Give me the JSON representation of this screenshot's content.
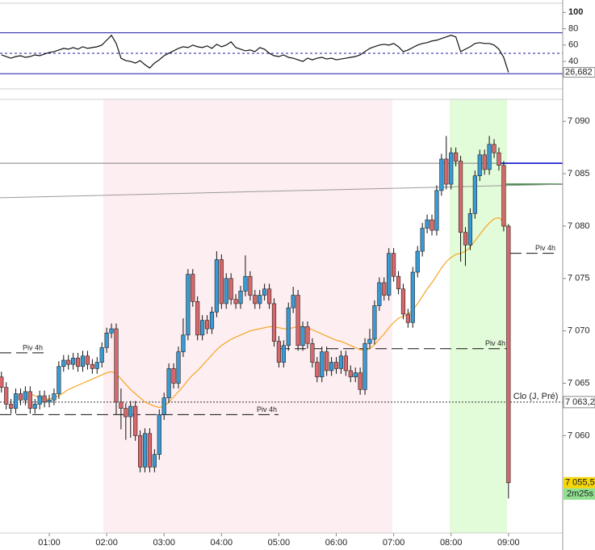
{
  "chart_data": {
    "type": "candlestick",
    "x": [
      10,
      15,
      20,
      25,
      30,
      35,
      40,
      45,
      50,
      55,
      60,
      65,
      70,
      75,
      80,
      85,
      90,
      95,
      100,
      105,
      110,
      115,
      120,
      125,
      130,
      135,
      140,
      145,
      150,
      155,
      160,
      165,
      170,
      175,
      180,
      185,
      190,
      195,
      200,
      205,
      210,
      215,
      220,
      225,
      230,
      235,
      240,
      245,
      250,
      255,
      260,
      265,
      270,
      275,
      280,
      285,
      290,
      295,
      300,
      305,
      310,
      315,
      320,
      325,
      330,
      335,
      340,
      345,
      350,
      355,
      360,
      365,
      370,
      375,
      380,
      385,
      390,
      395,
      400,
      405,
      410,
      415,
      420,
      425,
      430,
      435,
      440,
      445,
      450,
      455,
      460,
      465,
      470,
      475,
      480,
      485,
      490,
      495,
      500,
      505,
      510,
      515,
      520,
      525,
      530,
      535,
      540
    ],
    "xlim": [
      8.5,
      596.7
    ],
    "xticks": [
      {
        "value": 60,
        "label": "01:00"
      },
      {
        "value": 120,
        "label": "02:00"
      },
      {
        "value": 180,
        "label": "03:00"
      },
      {
        "value": 240,
        "label": "04:00"
      },
      {
        "value": 300,
        "label": "05:00"
      },
      {
        "value": 360,
        "label": "06:00"
      },
      {
        "value": 420,
        "label": "07:00"
      },
      {
        "value": 480,
        "label": "08:00"
      },
      {
        "value": 540,
        "label": "09:00"
      }
    ],
    "open": [
      7065.6,
      7064.6,
      7063.0,
      7062.6,
      7064.0,
      7063.4,
      7064.2,
      7062.6,
      7063.0,
      7063.8,
      7063.2,
      7063.4,
      7064.0,
      7066.6,
      7067.2,
      7066.8,
      7067.4,
      7066.6,
      7067.6,
      7066.8,
      7066.4,
      7067.0,
      7068.4,
      7069.8,
      7070.2,
      7063.2,
      7062.6,
      7061.8,
      7062.8,
      7060.0,
      7057.0,
      7060.2,
      7057.0,
      7058.2,
      7062.0,
      7063.6,
      7066.4,
      7065.0,
      7068.0,
      7069.6,
      7075.4,
      7072.8,
      7069.6,
      7071.0,
      7070.2,
      7071.8,
      7076.8,
      7072.6,
      7075.0,
      7073.0,
      7072.6,
      7073.8,
      7075.2,
      7073.4,
      7072.6,
      7073.4,
      7074.0,
      7072.6,
      7069.0,
      7067.0,
      7068.6,
      7072.2,
      7073.4,
      7068.6,
      7070.4,
      7068.8,
      7067.0,
      7065.6,
      7068.0,
      7066.2,
      7067.0,
      7066.4,
      7067.6,
      7066.2,
      7065.6,
      7066.0,
      7064.4,
      7068.8,
      7069.2,
      7072.4,
      7074.6,
      7073.4,
      7077.4,
      7075.2,
      7074.0,
      7071.6,
      7070.8,
      7075.6,
      7077.6,
      7079.8,
      7080.6,
      7079.6,
      7083.4,
      7086.4,
      7084.0,
      7087.0,
      7086.2,
      7079.4,
      7078.2,
      7081.2,
      7084.8,
      7086.8,
      7085.4,
      7087.8,
      7087.0,
      7085.8,
      7080.0
    ],
    "high": [
      7066.1,
      7065.1,
      7063.5,
      7064.5,
      7064.5,
      7064.7,
      7064.7,
      7063.5,
      7064.3,
      7064.3,
      7063.9,
      7064.5,
      7067.1,
      7067.7,
      7067.7,
      7067.9,
      7067.9,
      7068.1,
      7068.1,
      7067.3,
      7067.5,
      7068.9,
      7070.3,
      7070.7,
      7070.7,
      7064.5,
      7063.1,
      7063.3,
      7063.3,
      7060.5,
      7060.7,
      7060.7,
      7058.7,
      7062.5,
      7064.1,
      7066.9,
      7066.9,
      7068.5,
      7071.2,
      7075.9,
      7075.9,
      7073.3,
      7071.5,
      7071.5,
      7072.3,
      7077.6,
      7077.3,
      7075.5,
      7075.5,
      7073.5,
      7074.3,
      7077.2,
      7075.7,
      7073.9,
      7073.9,
      7074.5,
      7074.5,
      7073.1,
      7069.5,
      7069.1,
      7072.7,
      7074.2,
      7073.9,
      7070.9,
      7070.9,
      7069.3,
      7067.5,
      7068.5,
      7068.5,
      7067.5,
      7067.5,
      7068.1,
      7068.1,
      7066.7,
      7066.5,
      7066.5,
      7069.3,
      7070.2,
      7072.9,
      7075.1,
      7075.1,
      7077.9,
      7077.9,
      7075.7,
      7074.5,
      7072.1,
      7076.1,
      7078.1,
      7080.3,
      7081.1,
      7081.1,
      7083.9,
      7086.9,
      7088.6,
      7087.5,
      7087.5,
      7086.7,
      7079.9,
      7081.7,
      7085.3,
      7087.3,
      7087.3,
      7088.6,
      7088.3,
      7087.5,
      7086.2,
      7080.2
    ],
    "low": [
      7064.1,
      7062.5,
      7062.1,
      7062.1,
      7062.9,
      7062.9,
      7062.1,
      7062.1,
      7062.5,
      7062.7,
      7062.7,
      7062.9,
      7063.5,
      7066.1,
      7066.3,
      7066.3,
      7066.1,
      7066.1,
      7066.3,
      7065.9,
      7065.9,
      7066.5,
      7067.9,
      7069.3,
      7062.0,
      7060.6,
      7059.6,
      7059.8,
      7059.5,
      7056.5,
      7056.5,
      7056.5,
      7056.5,
      7057.7,
      7061.5,
      7063.1,
      7064.5,
      7064.5,
      7067.5,
      7069.1,
      7072.3,
      7069.1,
      7069.1,
      7069.7,
      7069.7,
      7071.3,
      7072.1,
      7072.1,
      7072.5,
      7072.1,
      7072.1,
      7073.3,
      7072.9,
      7072.1,
      7072.1,
      7072.9,
      7072.1,
      7068.5,
      7066.5,
      7066.5,
      7068.1,
      7071.7,
      7068.1,
      7068.1,
      7068.3,
      7066.5,
      7065.1,
      7065.1,
      7065.7,
      7065.7,
      7065.9,
      7065.9,
      7065.7,
      7065.1,
      7065.1,
      7063.9,
      7063.9,
      7068.3,
      7068.7,
      7071.9,
      7072.9,
      7072.9,
      7074.7,
      7073.5,
      7071.1,
      7070.3,
      7070.3,
      7075.1,
      7077.1,
      7079.3,
      7079.1,
      7079.1,
      7082.9,
      7083.5,
      7083.5,
      7085.7,
      7076.6,
      7076.2,
      7077.7,
      7080.7,
      7084.3,
      7084.9,
      7084.9,
      7086.5,
      7085.3,
      7079.5,
      7054.0
    ],
    "close": [
      7064.6,
      7063.0,
      7062.6,
      7064.0,
      7063.4,
      7064.2,
      7062.6,
      7063.0,
      7063.8,
      7063.2,
      7063.4,
      7064.0,
      7066.6,
      7067.2,
      7066.8,
      7067.4,
      7066.6,
      7067.6,
      7066.8,
      7066.4,
      7067.0,
      7068.4,
      7069.8,
      7070.2,
      7063.2,
      7062.6,
      7061.8,
      7062.8,
      7060.0,
      7057.0,
      7060.2,
      7057.0,
      7058.2,
      7062.0,
      7063.6,
      7066.4,
      7065.0,
      7068.0,
      7069.6,
      7075.4,
      7072.8,
      7069.6,
      7071.0,
      7070.2,
      7071.8,
      7076.8,
      7072.6,
      7075.0,
      7073.0,
      7072.6,
      7073.8,
      7075.2,
      7073.4,
      7072.6,
      7073.4,
      7074.0,
      7072.6,
      7069.0,
      7067.0,
      7068.6,
      7072.2,
      7073.4,
      7068.6,
      7070.4,
      7068.8,
      7067.0,
      7065.6,
      7068.0,
      7066.2,
      7067.0,
      7066.4,
      7067.6,
      7066.2,
      7065.6,
      7066.0,
      7064.4,
      7068.8,
      7069.2,
      7072.4,
      7074.6,
      7073.4,
      7077.4,
      7075.2,
      7074.0,
      7071.6,
      7070.8,
      7075.6,
      7077.6,
      7079.8,
      7080.6,
      7079.6,
      7083.4,
      7086.4,
      7084.0,
      7087.0,
      7086.2,
      7079.4,
      7078.2,
      7081.2,
      7084.8,
      7086.8,
      7085.4,
      7087.8,
      7087.0,
      7085.8,
      7080.0,
      7055.5
    ],
    "up_color": "#3a9ad4",
    "down_color": "#d9686c",
    "ylim": [
      7050.7,
      7092.1
    ],
    "yticks": [
      {
        "value": 7060,
        "label": "7 060"
      },
      {
        "value": 7065,
        "label": "7 065"
      },
      {
        "value": 7070,
        "label": "7 070"
      },
      {
        "value": 7075,
        "label": "7 075"
      },
      {
        "value": 7080,
        "label": "7 080"
      },
      {
        "value": 7085,
        "label": "7 085"
      },
      {
        "value": 7090,
        "label": "7 090"
      }
    ],
    "moving_average": {
      "color": "#f5a623",
      "values": [
        null,
        null,
        null,
        null,
        null,
        null,
        7064.0,
        7063.8,
        7063.6,
        7063.5,
        7063.5,
        7063.6,
        7063.8,
        7064.1,
        7064.4,
        7064.6,
        7064.8,
        7065.0,
        7065.2,
        7065.4,
        7065.6,
        7065.8,
        7066.0,
        7066.1,
        7065.9,
        7065.4,
        7064.9,
        7064.4,
        7064.0,
        7063.6,
        7063.2,
        7063.0,
        7062.8,
        7062.7,
        7062.8,
        7063.2,
        7063.7,
        7064.2,
        7064.7,
        7065.3,
        7065.8,
        7066.2,
        7066.7,
        7067.2,
        7067.7,
        7068.2,
        7068.6,
        7068.9,
        7069.2,
        7069.4,
        7069.6,
        7069.8,
        7070.0,
        7070.1,
        7070.2,
        7070.3,
        7070.4,
        7070.4,
        7070.3,
        7070.2,
        7070.2,
        7070.3,
        7070.4,
        7070.4,
        7070.3,
        7070.1,
        7069.9,
        7069.7,
        7069.5,
        7069.3,
        7069.1,
        7069.0,
        7068.8,
        7068.6,
        7068.4,
        7068.2,
        7068.1,
        7068.3,
        7068.7,
        7069.2,
        7069.7,
        7070.3,
        7070.8,
        7071.2,
        7071.4,
        7071.6,
        7072.0,
        7072.6,
        7073.3,
        7074.0,
        7074.6,
        7075.3,
        7076.0,
        7076.6,
        7077.0,
        7077.3,
        7077.4,
        7077.6,
        7078.0,
        7078.6,
        7079.2,
        7079.8,
        7080.3,
        7080.7,
        7080.8,
        7080.4,
        7079.6
      ]
    },
    "sessions": [
      {
        "from": 116.5,
        "to": 418.6,
        "color": "#fdeef1"
      },
      {
        "from": 478.6,
        "to": 538.5,
        "color": "#e2fbd8"
      }
    ],
    "price_lines": [
      {
        "value": 7086.0,
        "color": "#808080"
      },
      {
        "value": 7086.0,
        "color": "#0000cc",
        "from": 532
      },
      {
        "value": 7084.0,
        "color": "#2e7d32",
        "from": 537.6
      }
    ],
    "trend_line": {
      "color": "#9a9a9a",
      "from": [
        8.5,
        7082.7
      ],
      "to": [
        596.7,
        7084.0
      ]
    },
    "pivots": [
      {
        "label": "Piv 4h",
        "value": 7067.9,
        "from": 8.5,
        "to": 54.9
      },
      {
        "label": "Piv 4h",
        "value": 7062.0,
        "from": 8.5,
        "to": 299.7
      },
      {
        "label": "Piv 4h",
        "value": 7068.3,
        "from": 299.7,
        "to": 538.5
      },
      {
        "label": "Piv 4h",
        "value": 7077.4,
        "from": 541.8,
        "to": 590.8
      }
    ],
    "previous_close": {
      "name": "Clo (J, Pré)",
      "value": 7063.2,
      "label": "7 063,2"
    },
    "last_price": {
      "value": 7055.5,
      "label": "7 055,5",
      "color": "#f5d60a"
    },
    "countdown": {
      "label": "2m25s",
      "color": "#8fe08f"
    },
    "oscillator": {
      "color": "#111111",
      "ylim": [
        6.5,
        111.2
      ],
      "yticks": [
        40,
        60,
        80,
        100
      ],
      "levels": [
        {
          "value": 75,
          "color": "#1a1aa6"
        },
        {
          "value": 50,
          "color": "#1a1aa6",
          "dashed": true
        },
        {
          "value": 25,
          "color": "#1a1aa6"
        }
      ],
      "values": [
        48,
        46,
        44,
        46,
        47,
        45,
        46,
        48,
        47,
        49,
        51,
        52,
        54,
        56,
        55,
        57,
        55,
        58,
        56,
        57,
        58,
        60,
        66,
        72,
        62,
        44,
        41,
        40,
        38,
        41,
        36,
        32,
        38,
        42,
        47,
        50,
        53,
        56,
        58,
        57,
        60,
        58,
        57,
        59,
        56,
        61,
        58,
        60,
        64,
        57,
        55,
        53,
        54,
        52,
        57,
        55,
        50,
        47,
        46,
        48,
        45,
        44,
        42,
        40,
        44,
        42,
        44,
        45,
        43,
        44,
        42,
        43,
        44,
        45,
        46,
        48,
        52,
        56,
        58,
        60,
        61,
        60,
        62,
        58,
        52,
        54,
        57,
        60,
        62,
        63,
        65,
        66,
        68,
        70,
        72,
        70,
        52,
        55,
        58,
        62,
        63,
        62,
        62,
        60,
        55,
        45,
        26.682
      ],
      "last_label": {
        "value": 26.682,
        "label": "26,682"
      }
    }
  }
}
